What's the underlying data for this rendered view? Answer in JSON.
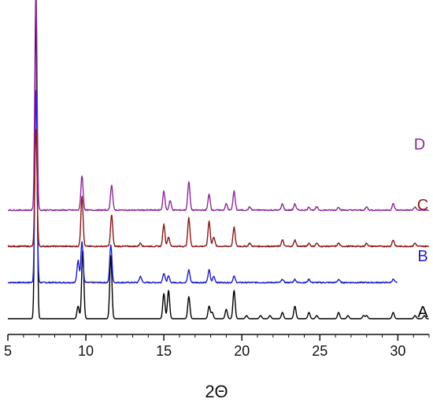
{
  "chart_data": {
    "type": "line",
    "title": "",
    "xlabel": "2Θ",
    "ylabel": "",
    "xlim": [
      5,
      32
    ],
    "xticks": [
      5,
      10,
      15,
      20,
      25,
      30
    ],
    "grid": false,
    "legend": "inline labels at right end of each trace",
    "offset_step": 0.115,
    "series": [
      {
        "name": "A",
        "color": "#000000",
        "peaks": [
          [
            6.8,
            1.0
          ],
          [
            9.5,
            0.04
          ],
          [
            9.8,
            0.22
          ],
          [
            11.6,
            0.2
          ],
          [
            15.0,
            0.08
          ],
          [
            15.3,
            0.09
          ],
          [
            16.6,
            0.07
          ],
          [
            17.9,
            0.04
          ],
          [
            18.1,
            0.02
          ],
          [
            19.0,
            0.03
          ],
          [
            19.5,
            0.09
          ],
          [
            20.3,
            0.01
          ],
          [
            21.2,
            0.01
          ],
          [
            21.8,
            0.01
          ],
          [
            22.6,
            0.02
          ],
          [
            23.4,
            0.04
          ],
          [
            24.3,
            0.02
          ],
          [
            24.8,
            0.01
          ],
          [
            26.2,
            0.02
          ],
          [
            26.8,
            0.01
          ],
          [
            27.8,
            0.01
          ],
          [
            28.0,
            0.01
          ],
          [
            29.7,
            0.02
          ],
          [
            31.1,
            0.01
          ],
          [
            31.7,
            0.01
          ]
        ]
      },
      {
        "name": "B",
        "color": "#1e1ec8",
        "peaks": [
          [
            6.8,
            0.62
          ],
          [
            9.5,
            0.07
          ],
          [
            9.75,
            0.13
          ],
          [
            11.6,
            0.12
          ],
          [
            13.5,
            0.02
          ],
          [
            15.0,
            0.03
          ],
          [
            15.3,
            0.02
          ],
          [
            16.6,
            0.04
          ],
          [
            17.9,
            0.04
          ],
          [
            18.2,
            0.02
          ],
          [
            19.5,
            0.02
          ],
          [
            22.6,
            0.01
          ],
          [
            23.4,
            0.01
          ],
          [
            24.3,
            0.01
          ],
          [
            26.2,
            0.01
          ],
          [
            29.7,
            0.01
          ]
        ]
      },
      {
        "name": "C",
        "color": "#8b1a1a",
        "peaks": [
          [
            6.8,
            0.38
          ],
          [
            9.75,
            0.16
          ],
          [
            11.65,
            0.1
          ],
          [
            13.5,
            0.01
          ],
          [
            15.0,
            0.07
          ],
          [
            15.3,
            0.03
          ],
          [
            16.6,
            0.09
          ],
          [
            17.9,
            0.08
          ],
          [
            18.2,
            0.03
          ],
          [
            19.5,
            0.06
          ],
          [
            20.5,
            0.01
          ],
          [
            22.6,
            0.02
          ],
          [
            23.4,
            0.02
          ],
          [
            24.3,
            0.01
          ],
          [
            24.8,
            0.01
          ],
          [
            26.2,
            0.01
          ],
          [
            28.0,
            0.01
          ],
          [
            29.7,
            0.02
          ],
          [
            31.1,
            0.01
          ]
        ]
      },
      {
        "name": "D",
        "color": "#8e2a9a",
        "peaks": [
          [
            6.8,
            0.72
          ],
          [
            9.75,
            0.11
          ],
          [
            11.65,
            0.08
          ],
          [
            15.0,
            0.06
          ],
          [
            15.4,
            0.03
          ],
          [
            16.6,
            0.09
          ],
          [
            17.9,
            0.05
          ],
          [
            19.0,
            0.02
          ],
          [
            19.5,
            0.06
          ],
          [
            20.5,
            0.01
          ],
          [
            22.6,
            0.02
          ],
          [
            23.4,
            0.02
          ],
          [
            24.3,
            0.01
          ],
          [
            24.8,
            0.01
          ],
          [
            26.2,
            0.01
          ],
          [
            28.0,
            0.01
          ],
          [
            29.7,
            0.02
          ],
          [
            31.1,
            0.01
          ]
        ]
      }
    ]
  }
}
